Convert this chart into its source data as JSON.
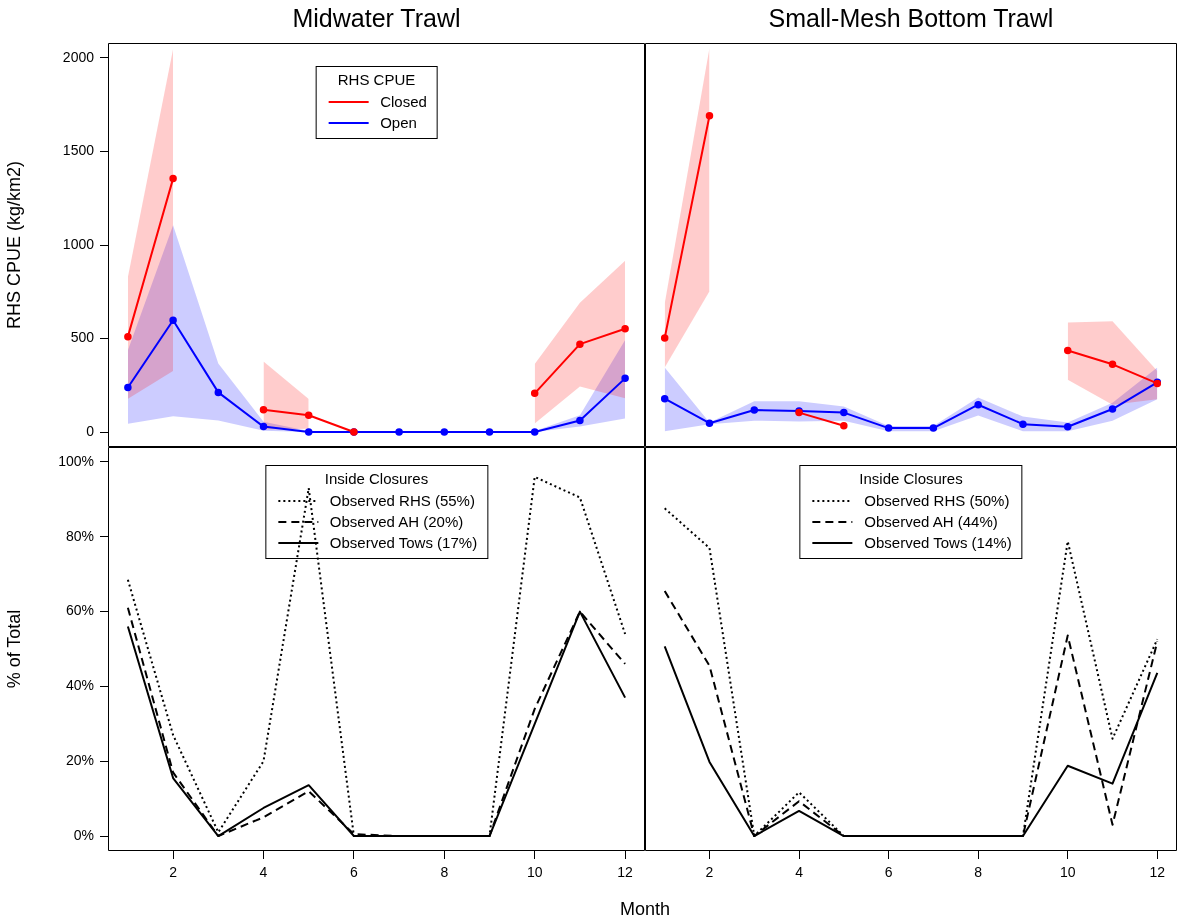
{
  "chart_data": [
    {
      "type": "line",
      "title": "Midwater Trawl",
      "ylabel": "RHS CPUE (kg/km2)",
      "legend_title": "RHS CPUE",
      "legend": "top",
      "marker": "circle",
      "tick_labels": "y",
      "x": [
        1,
        2,
        3,
        4,
        5,
        6,
        7,
        8,
        9,
        10,
        11,
        12
      ],
      "xlim": [
        0.56,
        12.44
      ],
      "ylim": [
        -80,
        2080
      ],
      "yticks": [
        0,
        500,
        1000,
        1500,
        2000
      ],
      "series": [
        {
          "name": "Closed",
          "color": "#ff0000",
          "values": [
            510,
            1355,
            null,
            119,
            90,
            0,
            null,
            null,
            null,
            207,
            470,
            552
          ],
          "lower": [
            177,
            327,
            null,
            13,
            18,
            null,
            null,
            null,
            null,
            46,
            243,
            181
          ],
          "upper": [
            828,
            2048,
            null,
            377,
            177,
            null,
            null,
            null,
            null,
            364,
            691,
            916
          ]
        },
        {
          "name": "Open",
          "color": "#0000ff",
          "values": [
            238,
            598,
            212,
            29,
            0,
            0,
            0,
            0,
            0,
            0,
            62,
            287
          ],
          "lower": [
            44,
            84,
            62,
            7,
            0,
            0,
            0,
            0,
            0,
            0,
            29,
            73
          ],
          "upper": [
            437,
            1106,
            366,
            55,
            5,
            0,
            0,
            0,
            0,
            5,
            90,
            492
          ]
        }
      ]
    },
    {
      "type": "line",
      "title": "Small-Mesh Bottom Trawl",
      "marker": "circle",
      "tick_labels": false,
      "x": [
        1,
        2,
        3,
        4,
        5,
        6,
        7,
        8,
        9,
        10,
        11,
        12
      ],
      "xlim": [
        0.56,
        12.44
      ],
      "ylim": [
        -80,
        2080
      ],
      "series": [
        {
          "color": "#ff0000",
          "values": [
            503,
            1691,
            null,
            104,
            34,
            null,
            null,
            null,
            null,
            436,
            362,
            260
          ],
          "lower": [
            345,
            753,
            null,
            null,
            null,
            null,
            null,
            null,
            null,
            279,
            146,
            175
          ],
          "upper": [
            687,
            2053,
            null,
            null,
            null,
            null,
            null,
            null,
            null,
            586,
            592,
            326
          ]
        },
        {
          "color": "#0000ff",
          "values": [
            178,
            47,
            118,
            112,
            104,
            21,
            21,
            146,
            42,
            28,
            123,
            266
          ],
          "lower": [
            4,
            42,
            61,
            57,
            61,
            4,
            4,
            89,
            4,
            4,
            61,
            175
          ],
          "upper": [
            345,
            51,
            165,
            165,
            137,
            32,
            32,
            184,
            83,
            51,
            156,
            345
          ]
        }
      ]
    },
    {
      "type": "line",
      "ylabel": "% of Total",
      "xlabel": "Month",
      "legend_title": "Inside Closures",
      "legend": "top",
      "marker": "none",
      "x": [
        1,
        2,
        3,
        4,
        5,
        6,
        7,
        8,
        9,
        10,
        11,
        12
      ],
      "xlim": [
        0.56,
        12.44
      ],
      "xticks": [
        2,
        4,
        6,
        8,
        10,
        12
      ],
      "ylim": [
        -4,
        104
      ],
      "yticks": [
        {
          "value": 0,
          "label": "0%"
        },
        {
          "value": 20,
          "label": "20%"
        },
        {
          "value": 40,
          "label": "40%"
        },
        {
          "value": 60,
          "label": "60%"
        },
        {
          "value": 80,
          "label": "80%"
        },
        {
          "value": 100,
          "label": "100%"
        }
      ],
      "series": [
        {
          "name": "Observed RHS (55%)",
          "color": "#000000",
          "line_style": "dotted",
          "values": [
            68.5,
            27,
            1,
            20,
            93,
            0,
            0,
            0,
            0,
            96,
            90.5,
            54
          ]
        },
        {
          "name": "Observed AH (20%)",
          "color": "#000000",
          "line_style": "dashed",
          "values": [
            61,
            17,
            0,
            5,
            12,
            0.5,
            0,
            0,
            0,
            34,
            60,
            46
          ]
        },
        {
          "name": "Observed Tows (17%)",
          "color": "#000000",
          "line_style": "solid",
          "values": [
            56,
            15.5,
            0,
            7.5,
            13.6,
            0,
            0,
            0,
            0,
            30,
            60,
            37
          ]
        }
      ]
    },
    {
      "type": "line",
      "legend_title": "Inside Closures",
      "legend": "top",
      "marker": "none",
      "tick_labels": "x",
      "x": [
        1,
        2,
        3,
        4,
        5,
        6,
        7,
        8,
        9,
        10,
        11,
        12
      ],
      "xlim": [
        0.56,
        12.44
      ],
      "xticks": [
        2,
        4,
        6,
        8,
        10,
        12
      ],
      "ylim": [
        -4,
        104
      ],
      "series": [
        {
          "name": "Observed RHS (50%)",
          "color": "#000000",
          "line_style": "dotted",
          "values": [
            87.6,
            77,
            0,
            11.7,
            0,
            0,
            0,
            0,
            0,
            78.8,
            26,
            52.6
          ]
        },
        {
          "name": "Observed AH (44%)",
          "color": "#000000",
          "line_style": "dashed",
          "values": [
            65.5,
            45.5,
            0,
            9.3,
            0,
            0,
            0,
            0,
            0,
            53.6,
            3,
            52
          ]
        },
        {
          "name": "Observed Tows (14%)",
          "color": "#000000",
          "line_style": "solid",
          "values": [
            50.7,
            19.8,
            0,
            6.7,
            0,
            0,
            0,
            0,
            0,
            18.8,
            14,
            43.6
          ]
        }
      ]
    }
  ]
}
